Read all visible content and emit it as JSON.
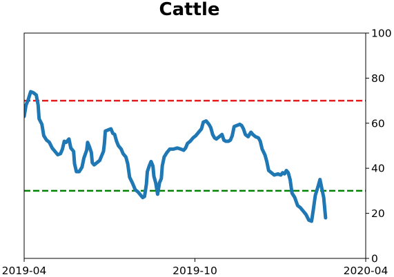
{
  "chart_data": {
    "type": "line",
    "title": "Cattle",
    "xlabel": "",
    "ylabel": "",
    "ylim": [
      0,
      100
    ],
    "y_ticks": [
      0,
      20,
      40,
      60,
      80,
      100
    ],
    "y_axis_side": "right",
    "grid": false,
    "xlim": [
      "2019-04-01",
      "2020-04-01"
    ],
    "x_ticks": [
      {
        "date": "2019-04-01",
        "label": "2019-04"
      },
      {
        "date": "2019-10-01",
        "label": "2019-10"
      },
      {
        "date": "2020-04-01",
        "label": "2020-04"
      }
    ],
    "series": [
      {
        "color": "#1f77b4",
        "points": [
          [
            "2019-04-01",
            63
          ],
          [
            "2019-04-03",
            68
          ],
          [
            "2019-04-05",
            70
          ],
          [
            "2019-04-08",
            74
          ],
          [
            "2019-04-11",
            73.5
          ],
          [
            "2019-04-14",
            72.5
          ],
          [
            "2019-04-16",
            68
          ],
          [
            "2019-04-17",
            62
          ],
          [
            "2019-04-20",
            59.5
          ],
          [
            "2019-04-22",
            54.5
          ],
          [
            "2019-04-25",
            52.5
          ],
          [
            "2019-04-28",
            51.5
          ],
          [
            "2019-05-01",
            49
          ],
          [
            "2019-05-04",
            47.5
          ],
          [
            "2019-05-07",
            46
          ],
          [
            "2019-05-10",
            46.5
          ],
          [
            "2019-05-12",
            48.5
          ],
          [
            "2019-05-14",
            52
          ],
          [
            "2019-05-16",
            51.5
          ],
          [
            "2019-05-18",
            52.5
          ],
          [
            "2019-05-19",
            53
          ],
          [
            "2019-05-21",
            49
          ],
          [
            "2019-05-24",
            47.5
          ],
          [
            "2019-05-25",
            42
          ],
          [
            "2019-05-27",
            38.5
          ],
          [
            "2019-05-30",
            38.5
          ],
          [
            "2019-06-02",
            40.5
          ],
          [
            "2019-06-04",
            44.5
          ],
          [
            "2019-06-07",
            48
          ],
          [
            "2019-06-08",
            51.5
          ],
          [
            "2019-06-10",
            49.5
          ],
          [
            "2019-06-12",
            47
          ],
          [
            "2019-06-13",
            42.5
          ],
          [
            "2019-06-15",
            41.5
          ],
          [
            "2019-06-18",
            42.5
          ],
          [
            "2019-06-21",
            43.5
          ],
          [
            "2019-06-23",
            45.5
          ],
          [
            "2019-06-25",
            47.5
          ],
          [
            "2019-06-26",
            51
          ],
          [
            "2019-06-27",
            56.5
          ],
          [
            "2019-06-30",
            57
          ],
          [
            "2019-07-03",
            57.5
          ],
          [
            "2019-07-05",
            55.5
          ],
          [
            "2019-07-07",
            55
          ],
          [
            "2019-07-09",
            52
          ],
          [
            "2019-07-11",
            50
          ],
          [
            "2019-07-14",
            48.5
          ],
          [
            "2019-07-16",
            46.5
          ],
          [
            "2019-07-19",
            45
          ],
          [
            "2019-07-21",
            42
          ],
          [
            "2019-07-23",
            36
          ],
          [
            "2019-07-26",
            33.5
          ],
          [
            "2019-07-29",
            30.5
          ],
          [
            "2019-08-01",
            29.5
          ],
          [
            "2019-08-04",
            28
          ],
          [
            "2019-08-06",
            27
          ],
          [
            "2019-08-08",
            27.5
          ],
          [
            "2019-08-10",
            33
          ],
          [
            "2019-08-11",
            38.5
          ],
          [
            "2019-08-13",
            41
          ],
          [
            "2019-08-15",
            43
          ],
          [
            "2019-08-17",
            41
          ],
          [
            "2019-08-18",
            36.5
          ],
          [
            "2019-08-20",
            33.5
          ],
          [
            "2019-08-22",
            28.5
          ],
          [
            "2019-08-24",
            33.5
          ],
          [
            "2019-08-26",
            35.5
          ],
          [
            "2019-08-27",
            41
          ],
          [
            "2019-08-29",
            45
          ],
          [
            "2019-09-01",
            47
          ],
          [
            "2019-09-04",
            48.5
          ],
          [
            "2019-09-08",
            48.5
          ],
          [
            "2019-09-12",
            49
          ],
          [
            "2019-09-16",
            48.5
          ],
          [
            "2019-09-19",
            48
          ],
          [
            "2019-09-21",
            49
          ],
          [
            "2019-09-23",
            51
          ],
          [
            "2019-09-26",
            52
          ],
          [
            "2019-09-29",
            53.5
          ],
          [
            "2019-10-02",
            54.5
          ],
          [
            "2019-10-05",
            56
          ],
          [
            "2019-10-08",
            57.5
          ],
          [
            "2019-10-10",
            60.5
          ],
          [
            "2019-10-13",
            61
          ],
          [
            "2019-10-16",
            59.5
          ],
          [
            "2019-10-18",
            58
          ],
          [
            "2019-10-20",
            55
          ],
          [
            "2019-10-22",
            53.5
          ],
          [
            "2019-10-24",
            53
          ],
          [
            "2019-10-27",
            54
          ],
          [
            "2019-10-30",
            55
          ],
          [
            "2019-11-01",
            52.5
          ],
          [
            "2019-11-03",
            52
          ],
          [
            "2019-11-06",
            52
          ],
          [
            "2019-11-08",
            52.5
          ],
          [
            "2019-11-10",
            54.5
          ],
          [
            "2019-11-12",
            58.5
          ],
          [
            "2019-11-15",
            59
          ],
          [
            "2019-11-18",
            59.5
          ],
          [
            "2019-11-20",
            59
          ],
          [
            "2019-11-22",
            57.5
          ],
          [
            "2019-11-24",
            55
          ],
          [
            "2019-11-27",
            54
          ],
          [
            "2019-11-30",
            56
          ],
          [
            "2019-12-02",
            55
          ],
          [
            "2019-12-05",
            54
          ],
          [
            "2019-12-08",
            53.5
          ],
          [
            "2019-12-10",
            52
          ],
          [
            "2019-12-12",
            48.5
          ],
          [
            "2019-12-15",
            46
          ],
          [
            "2019-12-17",
            43
          ],
          [
            "2019-12-19",
            39
          ],
          [
            "2019-12-22",
            38
          ],
          [
            "2019-12-25",
            37
          ],
          [
            "2019-12-29",
            37.5
          ],
          [
            "2020-01-01",
            37
          ],
          [
            "2020-01-03",
            38
          ],
          [
            "2020-01-05",
            37.5
          ],
          [
            "2020-01-07",
            39
          ],
          [
            "2020-01-09",
            38
          ],
          [
            "2020-01-11",
            35
          ],
          [
            "2020-01-13",
            29
          ],
          [
            "2020-01-16",
            27
          ],
          [
            "2020-01-19",
            23.5
          ],
          [
            "2020-01-22",
            22.5
          ],
          [
            "2020-01-25",
            21
          ],
          [
            "2020-01-28",
            19.5
          ],
          [
            "2020-01-31",
            17
          ],
          [
            "2020-02-03",
            16.5
          ],
          [
            "2020-02-05",
            22
          ],
          [
            "2020-02-07",
            28
          ],
          [
            "2020-02-10",
            32
          ],
          [
            "2020-02-12",
            35
          ],
          [
            "2020-02-14",
            31
          ],
          [
            "2020-02-16",
            27
          ],
          [
            "2020-02-18",
            18
          ]
        ]
      }
    ],
    "reference_lines": [
      {
        "y": 70,
        "color": "#e41a1c",
        "style": "dashed"
      },
      {
        "y": 30,
        "color": "#008000",
        "style": "dashed"
      }
    ]
  }
}
